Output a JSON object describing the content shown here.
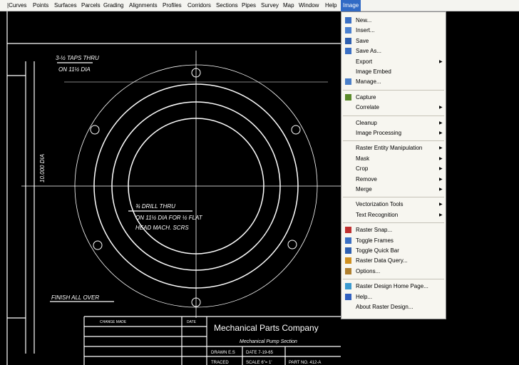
{
  "menubar": {
    "items": [
      "|Curves",
      "Points",
      "Surfaces",
      "Parcels",
      "Grading",
      "Alignments",
      "Profiles",
      "Corridors",
      "Sections",
      "Pipes",
      "Survey",
      "Map",
      "Window",
      "Help",
      "Image"
    ],
    "active": 14
  },
  "dropdown": {
    "groups": [
      [
        {
          "label": "New..."
        },
        {
          "label": "Insert..."
        },
        {
          "label": "Save"
        },
        {
          "label": "Save As..."
        },
        {
          "label": "Export",
          "submenu": true
        },
        {
          "label": "Image Embed"
        },
        {
          "label": "Manage..."
        }
      ],
      [
        {
          "label": "Capture"
        },
        {
          "label": "Correlate",
          "submenu": true
        }
      ],
      [
        {
          "label": "Cleanup",
          "submenu": true
        },
        {
          "label": "Image Processing",
          "submenu": true
        }
      ],
      [
        {
          "label": "Raster Entity Manipulation",
          "submenu": true
        },
        {
          "label": "Mask",
          "submenu": true
        },
        {
          "label": "Crop",
          "submenu": true
        },
        {
          "label": "Remove",
          "submenu": true
        },
        {
          "label": "Merge",
          "submenu": true
        }
      ],
      [
        {
          "label": "Vectorization Tools",
          "submenu": true
        },
        {
          "label": "Text Recognition",
          "submenu": true
        }
      ],
      [
        {
          "label": "Raster Snap..."
        },
        {
          "label": "Toggle Frames"
        },
        {
          "label": "Toggle Quick Bar"
        },
        {
          "label": "Raster Data Query..."
        },
        {
          "label": "Options..."
        }
      ],
      [
        {
          "label": "Raster Design Home Page..."
        },
        {
          "label": "Help..."
        },
        {
          "label": "About Raster Design..."
        }
      ]
    ]
  },
  "drawing": {
    "notes": [
      "3-½ TAPS THRU",
      "ON 11½ DIA",
      "¾ DRILL THRU",
      "ON 11½ DIA FOR ½ FLAT",
      "HEAD MACH. SCRS",
      "FINISH ALL OVER",
      "10.000 DIA"
    ],
    "title_block": {
      "company": "Mechanical Parts Company",
      "part": "Mechanical Pump Section",
      "change": "CHANGE MADE",
      "date_head": "DATE",
      "drawn": "DRAWN  E.S",
      "date": "DATE 7-19-65",
      "scale": "SCALE 6\"= 1'",
      "part_no": "PART NO. 412-A",
      "traced": "TRACED"
    }
  }
}
